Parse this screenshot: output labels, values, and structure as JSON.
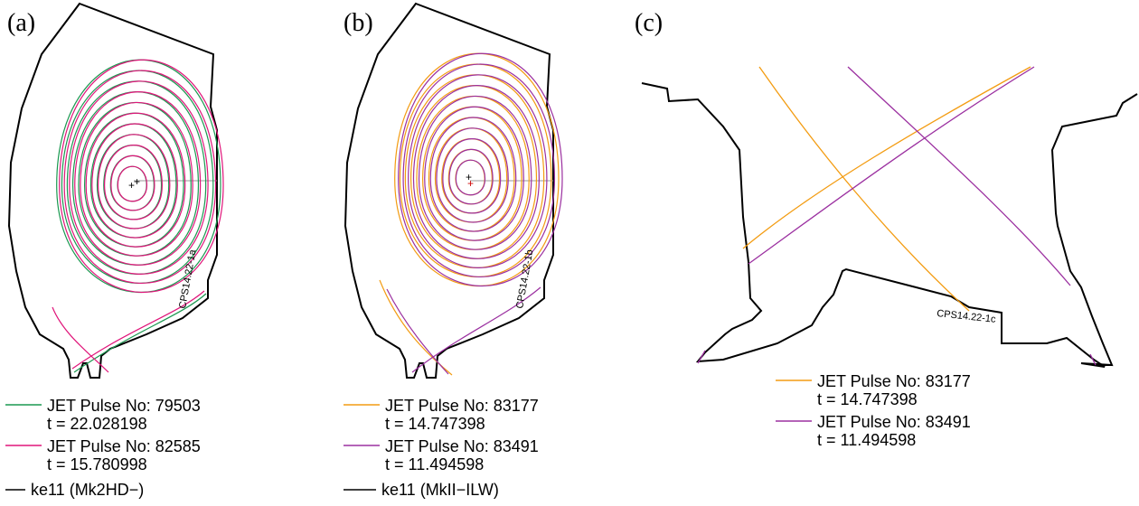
{
  "panels": [
    {
      "label": "(a)",
      "code": "CPS14.22-1a",
      "legend": [
        {
          "pulse": "JET Pulse No: 79503",
          "time": "t = 22.028198",
          "color": "#1a9850"
        },
        {
          "pulse": "JET Pulse No: 82585",
          "time": "t = 15.780998",
          "color": "#e0157a"
        },
        {
          "pulse": "ke11 (Mk2HD−)",
          "time": "",
          "color": "#000000"
        }
      ]
    },
    {
      "label": "(b)",
      "code": "CPS14.22-1b",
      "legend": [
        {
          "pulse": "JET Pulse No: 83177",
          "time": "t = 14.747398",
          "color": "#f39c12"
        },
        {
          "pulse": "JET Pulse No: 83491",
          "time": "t = 11.494598",
          "color": "#9b30a0"
        },
        {
          "pulse": "ke11 (MkII−ILW)",
          "time": "",
          "color": "#000000"
        }
      ]
    },
    {
      "label": "(c)",
      "code": "CPS14.22-1c",
      "legend": [
        {
          "pulse": "JET Pulse No: 83177",
          "time": "t = 14.747398",
          "color": "#f39c12"
        },
        {
          "pulse": "JET Pulse No: 83491",
          "time": "t = 11.494598",
          "color": "#9b30a0"
        }
      ]
    }
  ]
}
